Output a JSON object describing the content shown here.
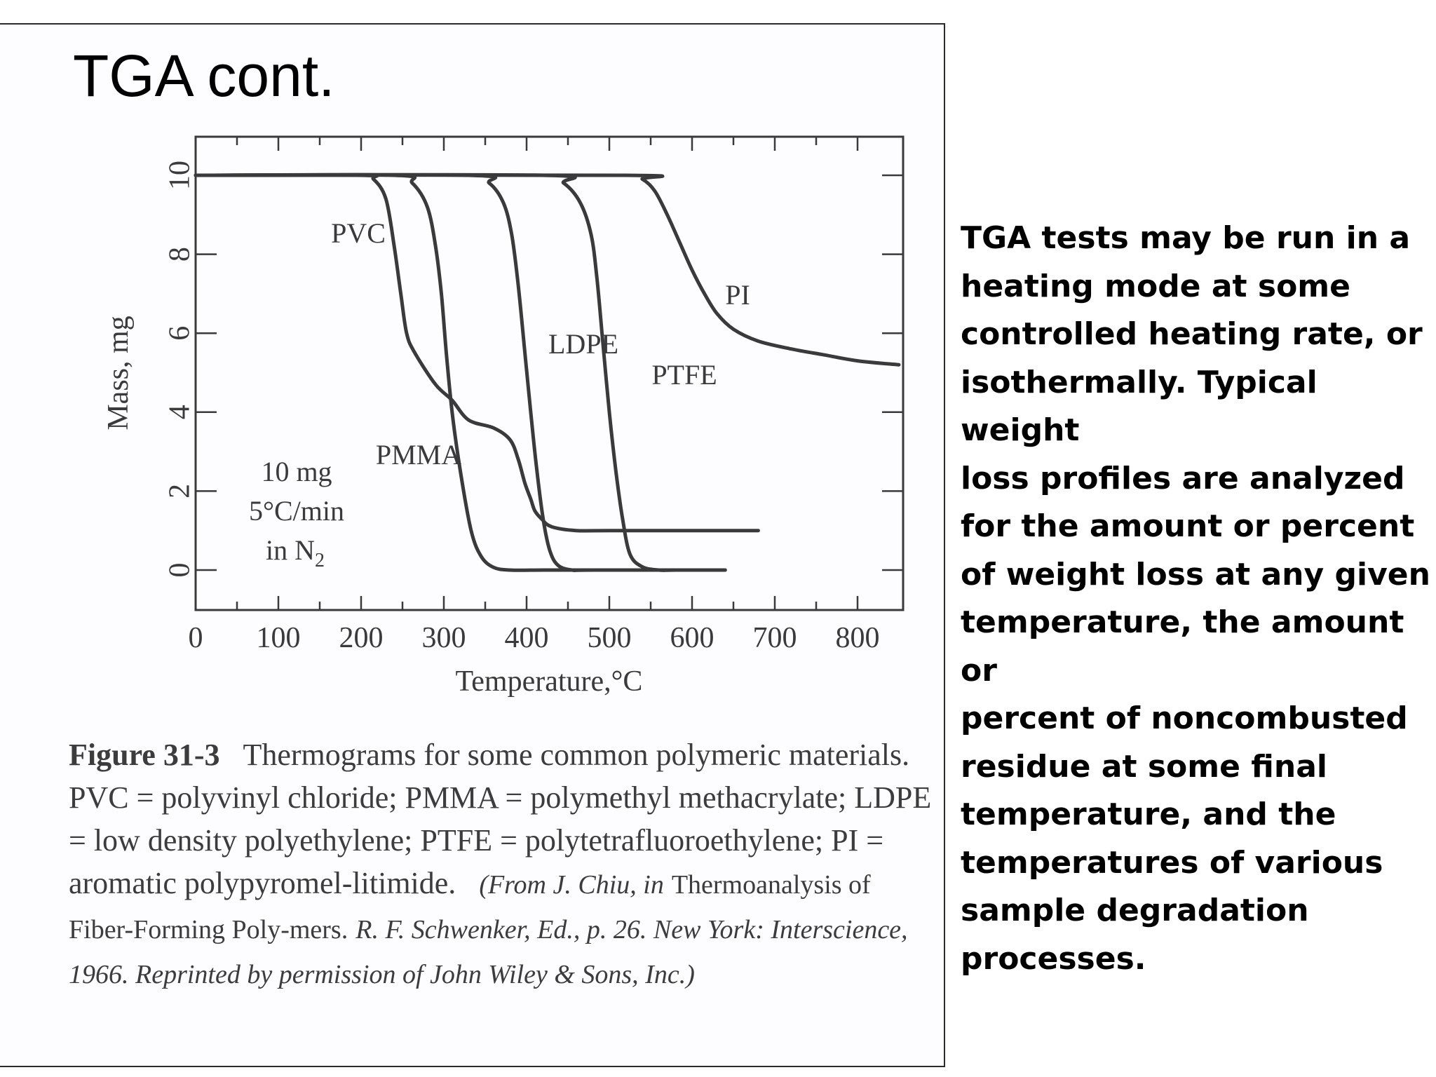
{
  "slide": {
    "title": "TGA cont.",
    "body_text": "TGA tests may be run in a\nheating mode at some\ncontrolled heating rate, or\nisothermally. Typical weight\nloss profiles are analyzed\nfor the amount or percent\nof weight loss at any given\ntemperature, the amount or\npercent of noncombusted\nresidue at some final\ntemperature, and the\ntemperatures of various\nsample degradation\nprocesses."
  },
  "chart_data": {
    "type": "line",
    "xlabel": "Temperature,°C",
    "ylabel": "Mass, mg",
    "xlim": [
      0,
      850
    ],
    "ylim": [
      -1,
      11
    ],
    "x_ticks": [
      0,
      100,
      200,
      300,
      400,
      500,
      600,
      700,
      800
    ],
    "y_ticks": [
      0,
      2,
      4,
      6,
      8,
      10
    ],
    "grid": false,
    "conditions": {
      "line1": "10 mg",
      "line2": "5°C/min",
      "line3_prefix": "in N",
      "line3_subscript": "2"
    },
    "series": [
      {
        "name": "PVC",
        "x": [
          0,
          200,
          215,
          230,
          240,
          248,
          255,
          265,
          290,
          310,
          330,
          360,
          380,
          390,
          398,
          405,
          410,
          418,
          430,
          460,
          500,
          680
        ],
        "y": [
          10,
          10,
          9.9,
          9.4,
          8.2,
          7.0,
          6.0,
          5.5,
          4.7,
          4.3,
          3.8,
          3.6,
          3.3,
          2.8,
          2.2,
          1.8,
          1.5,
          1.3,
          1.1,
          1.0,
          1.0,
          1.0
        ]
      },
      {
        "name": "PMMA",
        "x": [
          0,
          240,
          262,
          280,
          290,
          297,
          303,
          310,
          320,
          333,
          345,
          360,
          380,
          420,
          470,
          500,
          640
        ],
        "y": [
          10,
          10,
          9.8,
          9.2,
          8.2,
          7.0,
          5.5,
          4.0,
          2.5,
          1.0,
          0.35,
          0.07,
          0,
          0,
          0,
          0,
          0
        ]
      },
      {
        "name": "LDPE",
        "x": [
          0,
          330,
          355,
          372,
          382,
          390,
          398,
          405,
          412,
          420,
          428,
          438,
          455,
          480,
          640
        ],
        "y": [
          10,
          10,
          9.8,
          9.3,
          8.5,
          7.2,
          5.5,
          4.0,
          2.6,
          1.3,
          0.5,
          0.12,
          0,
          0,
          0
        ]
      },
      {
        "name": "PTFE",
        "x": [
          0,
          420,
          445,
          465,
          478,
          485,
          492,
          500,
          508,
          516,
          525,
          540,
          560,
          580,
          640
        ],
        "y": [
          10,
          10,
          9.8,
          9.3,
          8.5,
          7.4,
          5.8,
          4.0,
          2.5,
          1.3,
          0.4,
          0.08,
          0,
          0,
          0
        ]
      },
      {
        "name": "PI",
        "x": [
          0,
          520,
          540,
          555,
          570,
          585,
          600,
          615,
          630,
          650,
          680,
          720,
          760,
          800,
          850
        ],
        "y": [
          10,
          10,
          9.9,
          9.6,
          9.0,
          8.3,
          7.6,
          7.0,
          6.5,
          6.1,
          5.8,
          5.6,
          5.45,
          5.3,
          5.2
        ]
      }
    ]
  },
  "caption": {
    "label": "Figure 31-3",
    "text": "Thermograms for some common polymeric materials. PVC = polyvinyl chloride; PMMA = polymethyl methacrylate; LDPE = low density polyethylene; PTFE = polytetrafluoroethylene; PI = aromatic polypyromel-litimide.",
    "source_part1": "(From J. Chiu, in",
    "source_title": "Thermoanalysis of Fiber-Forming Poly-mers.",
    "source_part2": "R. F. Schwenker, Ed., p. 26. New York: Interscience, 1966. Reprinted by permission of John Wiley & Sons, Inc.)"
  },
  "colors": {
    "curve": "#3a3a3a",
    "axis": "#3a3a3a",
    "tick_label": "#3a3a3a",
    "slide_text": "#000000"
  }
}
